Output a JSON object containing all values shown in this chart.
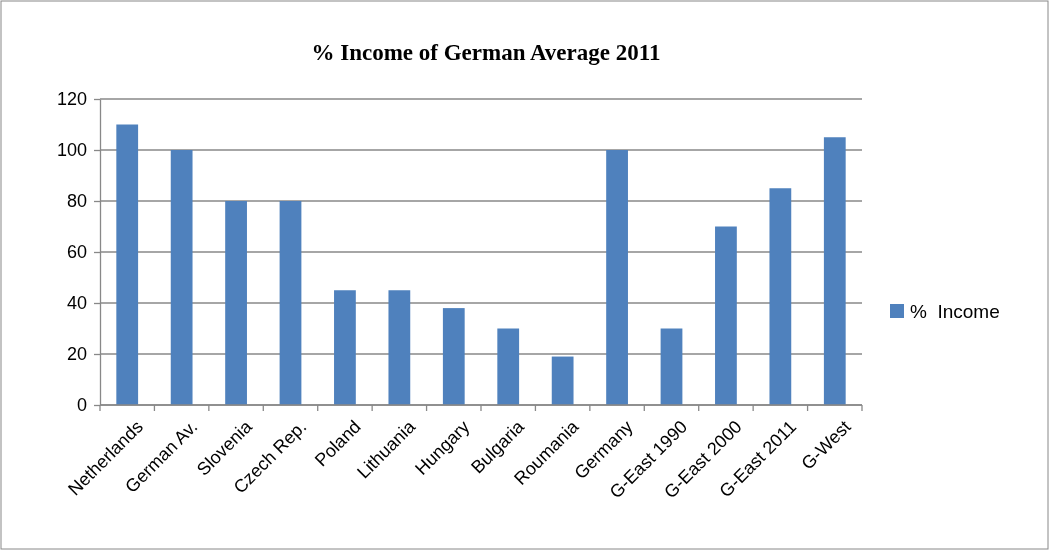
{
  "chart_data": {
    "type": "bar",
    "title": "%  Income of German Average 2011",
    "categories": [
      "Netherlands",
      "German Av.",
      "Slovenia",
      "Czech Rep.",
      "Poland",
      "Lithuania",
      "Hungary",
      "Bulgaria",
      "Roumania",
      "Germany",
      "G-East 1990",
      "G-East 2000",
      "G-East 2011",
      "G-West"
    ],
    "series": [
      {
        "name": "%  Income",
        "color": "#4f81bd",
        "values": [
          110,
          100,
          80,
          80,
          45,
          45,
          38,
          30,
          19,
          100,
          30,
          70,
          85,
          105
        ]
      }
    ],
    "ylim": [
      0,
      120
    ],
    "yticks": [
      0,
      20,
      40,
      60,
      80,
      100,
      120
    ],
    "grid": "y",
    "legend": "right"
  }
}
